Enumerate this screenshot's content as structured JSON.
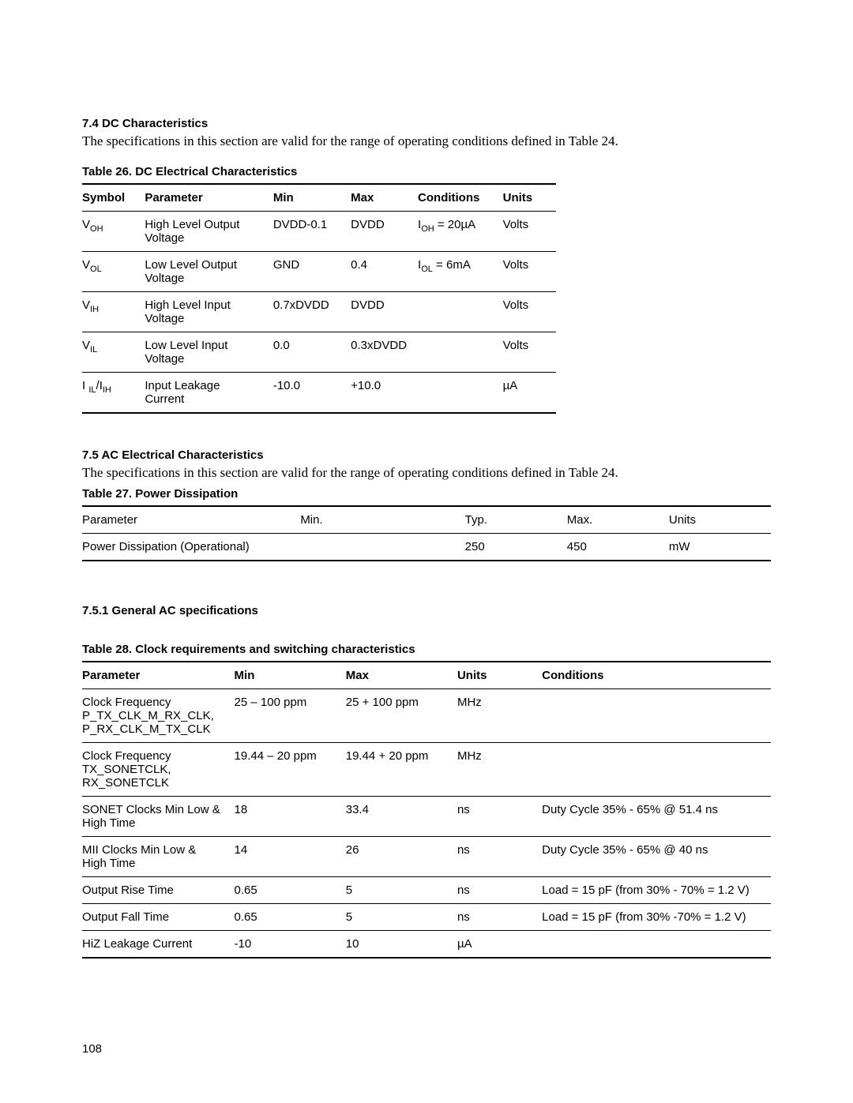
{
  "section74": {
    "heading": "7.4 DC Characteristics",
    "intro": "The specifications in this section are valid for the range of operating conditions defined in Table 24."
  },
  "table26": {
    "caption": "Table 26. DC Electrical Characteristics",
    "headers": [
      "Symbol",
      "Parameter",
      "Min",
      "Max",
      "Conditions",
      "Units"
    ],
    "rows": [
      {
        "sym_base": "V",
        "sym_sub": "OH",
        "param": "High Level Output Voltage",
        "min": "DVDD-0.1",
        "max": "DVDD",
        "cond_base": "I",
        "cond_sub": "OH",
        "cond_rest": " = 20µA",
        "units": "Volts"
      },
      {
        "sym_base": "V",
        "sym_sub": "OL",
        "param": "Low Level Output Voltage",
        "min": "GND",
        "max": "0.4",
        "cond_base": "I",
        "cond_sub": "OL",
        "cond_rest": " = 6mA",
        "units": "Volts"
      },
      {
        "sym_base": "V",
        "sym_sub": "IH",
        "param": "High Level Input Voltage",
        "min": "0.7xDVDD",
        "max": "DVDD",
        "cond_base": "",
        "cond_sub": "",
        "cond_rest": "",
        "units": "Volts"
      },
      {
        "sym_base": "V",
        "sym_sub": "IL",
        "param": "Low Level Input Voltage",
        "min": "0.0",
        "max": "0.3xDVDD",
        "cond_base": "",
        "cond_sub": "",
        "cond_rest": "",
        "units": "Volts"
      },
      {
        "sym_base": "I ",
        "sym_sub": "IL",
        "sym_mid": "/I",
        "sym_sub2": "IH",
        "param": "Input Leakage Current",
        "min": "-10.0",
        "max": "+10.0",
        "cond_base": "",
        "cond_sub": "",
        "cond_rest": "",
        "units": "µA"
      }
    ]
  },
  "section75": {
    "heading": "7.5 AC Electrical Characteristics",
    "intro": "The specifications in this section are valid for the range of operating conditions defined in Table 24."
  },
  "table27": {
    "caption": "Table 27. Power Dissipation",
    "headers": [
      "Parameter",
      "Min.",
      "Typ.",
      "Max.",
      "Units"
    ],
    "rows": [
      {
        "param": "Power Dissipation (Operational)",
        "min": "",
        "typ": "250",
        "max": "450",
        "units": "mW"
      }
    ]
  },
  "section751": {
    "heading": "7.5.1 General AC specifications"
  },
  "table28": {
    "caption": "Table 28. Clock requirements and switching characteristics",
    "headers": [
      "Parameter",
      "Min",
      "Max",
      "Units",
      "Conditions"
    ],
    "rows": [
      {
        "param": "Clock Frequency\nP_TX_CLK_M_RX_CLK,\nP_RX_CLK_M_TX_CLK",
        "min": "25 – 100 ppm",
        "max": "25 + 100 ppm",
        "units": "MHz",
        "cond": ""
      },
      {
        "param": "Clock Frequency\nTX_SONETCLK,\nRX_SONETCLK",
        "min": "19.44 – 20 ppm",
        "max": "19.44 + 20 ppm",
        "units": "MHz",
        "cond": ""
      },
      {
        "param": "SONET Clocks Min Low & High Time",
        "min": "18",
        "max": "33.4",
        "units": "ns",
        "cond": "Duty Cycle 35% - 65% @ 51.4 ns"
      },
      {
        "param": "MII Clocks Min Low & High Time",
        "min": "14",
        "max": "26",
        "units": "ns",
        "cond": "Duty Cycle 35% - 65% @ 40 ns"
      },
      {
        "param": "Output Rise Time",
        "min": "0.65",
        "max": "5",
        "units": "ns",
        "cond": "Load = 15 pF (from 30% - 70% = 1.2 V)"
      },
      {
        "param": "Output Fall Time",
        "min": "0.65",
        "max": "5",
        "units": "ns",
        "cond": "Load = 15 pF (from 30% -70% = 1.2 V)"
      },
      {
        "param": "HiZ Leakage Current",
        "min": "-10",
        "max": "10",
        "units": "µA",
        "cond": ""
      }
    ]
  },
  "pageNumber": "108"
}
